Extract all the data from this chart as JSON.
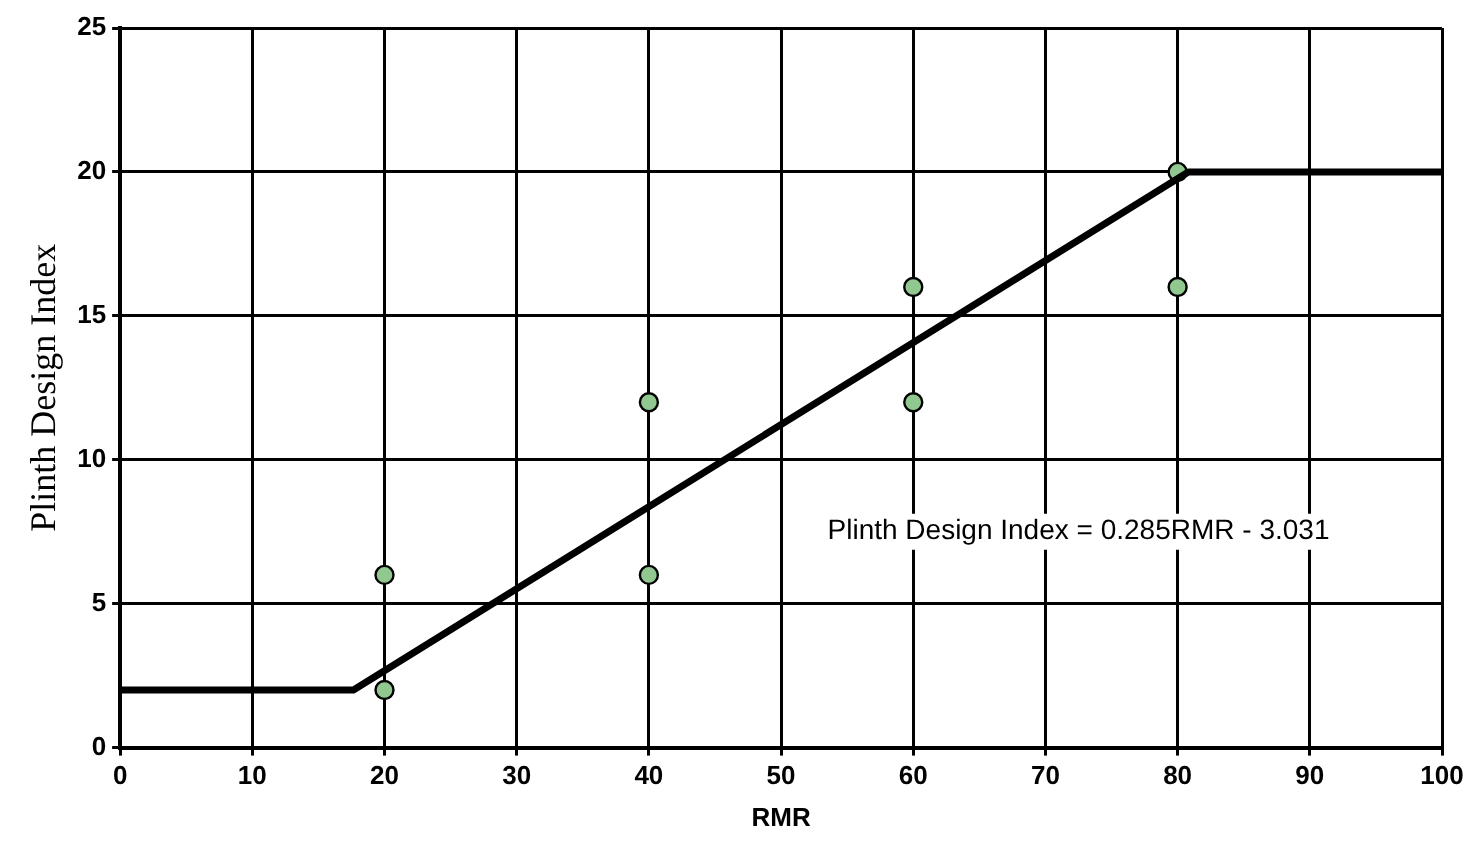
{
  "chart_data": {
    "type": "scatter",
    "xlabel": "RMR",
    "ylabel": "Plinth Design Index",
    "xlim": [
      0,
      100
    ],
    "xticks": [
      0,
      10,
      20,
      30,
      40,
      50,
      60,
      70,
      80,
      90,
      100
    ],
    "ylim": [
      0,
      25
    ],
    "yticks": [
      0,
      5,
      10,
      15,
      20,
      25
    ],
    "grid": true,
    "legend": false,
    "marker": "circle",
    "series": [
      {
        "type": "line",
        "color": "#000000",
        "x": [
          0,
          17.65,
          80.81,
          100
        ],
        "values": [
          2,
          2,
          20,
          20
        ],
        "marker": "none",
        "line_style": "solid"
      },
      {
        "type": "scatter",
        "color": "#90c890",
        "x": [
          20,
          20,
          40,
          40,
          60,
          60,
          80,
          80
        ],
        "values": [
          6,
          2,
          12,
          6,
          16,
          12,
          20,
          16
        ]
      }
    ],
    "annotations": [
      "Plinth Design Index = 0.285RMR - 3.031"
    ]
  }
}
